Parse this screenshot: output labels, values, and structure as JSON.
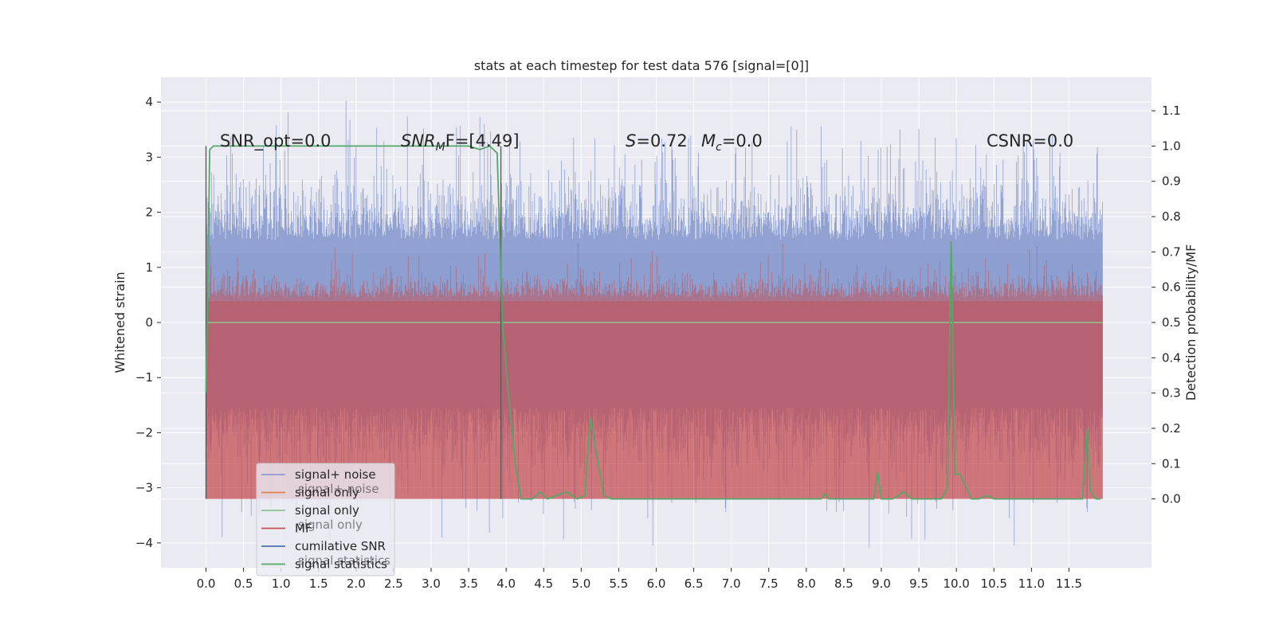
{
  "chart_data": {
    "type": "line",
    "title": "stats at each timestep for test data 576 [signal=[0]]",
    "ylabel": "Whitened strain",
    "y2label": "Detection probability/MF",
    "xlim": [
      -0.6,
      12.6
    ],
    "ylim": [
      -4.45,
      4.45
    ],
    "y2lim": [
      -0.195,
      1.195
    ],
    "x_ticks": [
      0.0,
      0.5,
      1.0,
      1.5,
      2.0,
      2.5,
      3.0,
      3.5,
      4.0,
      4.5,
      5.0,
      5.5,
      6.0,
      6.5,
      7.0,
      7.5,
      8.0,
      8.5,
      9.0,
      9.5,
      10.0,
      10.5,
      11.0,
      11.5
    ],
    "x_tick_labels": [
      "0.0",
      "0.5",
      "1.0",
      "1.5",
      "2.0",
      "2.5",
      "3.0",
      "3.5",
      "4.0",
      "4.5",
      "5.0",
      "5.5",
      "6.0",
      "6.5",
      "7.0",
      "7.5",
      "8.0",
      "8.5",
      "9.0",
      "9.5",
      "10.0",
      "10.5",
      "11.0",
      "11.5"
    ],
    "y_ticks": [
      4,
      3,
      2,
      1,
      0,
      -1,
      -2,
      -3,
      -4
    ],
    "y_tick_labels": [
      "4",
      "3",
      "2",
      "1",
      "0",
      "−1",
      "−2",
      "−3",
      "−4"
    ],
    "y2_ticks": [
      1.1,
      1.0,
      0.9,
      0.8,
      0.7,
      0.6,
      0.5,
      0.4,
      0.3,
      0.2,
      0.1,
      0.0
    ],
    "y2_tick_labels": [
      "1.1",
      "1.0",
      "0.9",
      "0.8",
      "0.7",
      "0.6",
      "0.5",
      "0.4",
      "0.3",
      "0.2",
      "0.1",
      "0.0"
    ],
    "grid": true,
    "legend_position": "lower-left",
    "annotations": {
      "snr_opt": "SNR_opt=0.0",
      "snr_mf_main": "SNR",
      "snr_mf_sub": "M",
      "snr_mf_rest": "F=[4.49]",
      "s_main": "S",
      "s_rest": "=0.72",
      "mc_main": "M",
      "mc_sub": "c",
      "mc_rest": "=0.0",
      "csnr": "CSNR=0.0"
    },
    "vertical_lines_x": [
      0.0,
      3.93
    ],
    "noise_envelope": {
      "x_range": [
        0.0,
        11.95
      ],
      "typical_range": [
        -2.0,
        2.0
      ],
      "extreme_range": [
        -4.1,
        4.05
      ]
    },
    "series": [
      {
        "name": "signal+ noise",
        "color": "#8c9ed0"
      },
      {
        "name": "signal only",
        "color": "#dd8452"
      },
      {
        "name": "signal only",
        "color": "#8dc48f"
      },
      {
        "name": "MF",
        "color": "#c44e52",
        "band_range": [
          0.0,
          0.75
        ]
      },
      {
        "name": "cumilative SNR",
        "color": "#4c72b0"
      },
      {
        "name": "signal statistics",
        "color": "#55a868",
        "x": [
          0.0,
          0.05,
          0.1,
          0.3,
          1.0,
          2.0,
          3.0,
          3.5,
          3.65,
          3.78,
          3.88,
          3.95,
          4.05,
          4.12,
          4.2,
          4.35,
          4.45,
          4.55,
          4.8,
          4.95,
          5.05,
          5.12,
          5.2,
          5.3,
          5.4,
          5.5,
          6.0,
          7.0,
          8.0,
          8.2,
          8.25,
          8.3,
          8.4,
          8.9,
          8.95,
          9.0,
          9.05,
          9.15,
          9.3,
          9.4,
          9.5,
          9.8,
          9.88,
          9.93,
          9.98,
          10.05,
          10.2,
          10.3,
          10.4,
          10.5,
          10.6,
          11.0,
          11.5,
          11.68,
          11.74,
          11.79,
          11.86,
          11.92
        ],
        "y": [
          0.3,
          0.99,
          1.0,
          1.0,
          1.0,
          1.0,
          1.0,
          1.0,
          0.99,
          1.0,
          0.98,
          0.5,
          0.25,
          0.1,
          0.0,
          0.0,
          0.02,
          0.0,
          0.02,
          0.0,
          0.01,
          0.23,
          0.13,
          0.01,
          0.0,
          0.0,
          0.0,
          0.0,
          0.0,
          0.0,
          0.015,
          0.0,
          0.0,
          0.0,
          0.075,
          0.0,
          0.0,
          0.0,
          0.02,
          0.0,
          0.0,
          0.0,
          0.03,
          0.73,
          0.07,
          0.07,
          0.0,
          0.0,
          0.01,
          0.0,
          0.0,
          0.0,
          0.0,
          0.0,
          0.2,
          0.02,
          0.0,
          0.0
        ]
      }
    ],
    "legend": [
      {
        "label": "signal+ noise",
        "color": "#8c9ed0"
      },
      {
        "label": "signal only",
        "color": "#dd8452"
      },
      {
        "label": "signal only",
        "color": "#8dc48f"
      },
      {
        "label": "MF",
        "color": "#c44e52"
      },
      {
        "label": "cumilative SNR",
        "color": "#4c72b0"
      },
      {
        "label": "signal statistics",
        "color": "#55a868"
      }
    ],
    "legend_ghost_labels": [
      "signal+ noise",
      "signal only",
      "signal statistics"
    ]
  },
  "colors": {
    "axes_bg": "#eaeaf2",
    "grid": "#ffffff",
    "vline": "#555555"
  }
}
